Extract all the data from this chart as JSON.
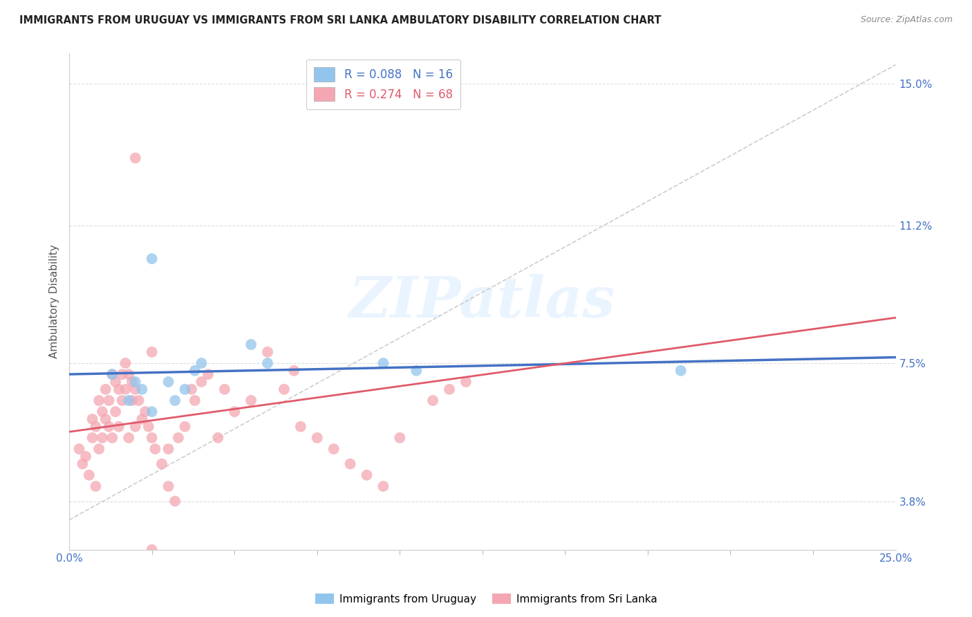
{
  "title": "IMMIGRANTS FROM URUGUAY VS IMMIGRANTS FROM SRI LANKA AMBULATORY DISABILITY CORRELATION CHART",
  "source": "Source: ZipAtlas.com",
  "ylabel_label": "Ambulatory Disability",
  "legend_label1": "Immigrants from Uruguay",
  "legend_label2": "Immigrants from Sri Lanka",
  "R_uruguay": 0.088,
  "N_uruguay": 16,
  "R_srilanka": 0.274,
  "N_srilanka": 68,
  "color_uruguay": "#92C5ED",
  "color_srilanka": "#F4A7B2",
  "line_color_uruguay": "#4472C4",
  "line_color_srilanka": "#E05A6A",
  "diag_line_color": "#C0C0C0",
  "background_color": "#FFFFFF",
  "xlim": [
    0.0,
    0.25
  ],
  "ylim": [
    0.025,
    0.158
  ],
  "ytick_vals": [
    0.038,
    0.075,
    0.112,
    0.15
  ],
  "ytick_labels": [
    "3.8%",
    "7.5%",
    "11.2%",
    "15.0%"
  ],
  "xtick_vals": [
    0.0,
    0.25
  ],
  "xtick_labels": [
    "0.0%",
    "25.0%"
  ],
  "watermark": "ZIPatlas",
  "uruguay_x": [
    0.013,
    0.018,
    0.02,
    0.022,
    0.025,
    0.025,
    0.03,
    0.032,
    0.035,
    0.038,
    0.04,
    0.055,
    0.06,
    0.095,
    0.105,
    0.185
  ],
  "uruguay_y": [
    0.072,
    0.065,
    0.07,
    0.068,
    0.062,
    0.103,
    0.07,
    0.065,
    0.068,
    0.073,
    0.075,
    0.08,
    0.075,
    0.075,
    0.073,
    0.073
  ],
  "srilanka_x": [
    0.003,
    0.004,
    0.005,
    0.006,
    0.007,
    0.007,
    0.008,
    0.008,
    0.009,
    0.009,
    0.01,
    0.01,
    0.011,
    0.011,
    0.012,
    0.012,
    0.013,
    0.013,
    0.014,
    0.014,
    0.015,
    0.015,
    0.016,
    0.016,
    0.017,
    0.017,
    0.018,
    0.018,
    0.019,
    0.019,
    0.02,
    0.02,
    0.021,
    0.022,
    0.023,
    0.024,
    0.025,
    0.025,
    0.026,
    0.028,
    0.03,
    0.03,
    0.032,
    0.033,
    0.035,
    0.037,
    0.038,
    0.04,
    0.042,
    0.045,
    0.047,
    0.05,
    0.055,
    0.06,
    0.065,
    0.068,
    0.07,
    0.075,
    0.08,
    0.085,
    0.09,
    0.095,
    0.1,
    0.11,
    0.115,
    0.12,
    0.025,
    0.02
  ],
  "srilanka_y": [
    0.052,
    0.048,
    0.05,
    0.045,
    0.055,
    0.06,
    0.042,
    0.058,
    0.052,
    0.065,
    0.055,
    0.062,
    0.06,
    0.068,
    0.058,
    0.065,
    0.055,
    0.072,
    0.062,
    0.07,
    0.058,
    0.068,
    0.065,
    0.072,
    0.068,
    0.075,
    0.055,
    0.072,
    0.065,
    0.07,
    0.058,
    0.068,
    0.065,
    0.06,
    0.062,
    0.058,
    0.055,
    0.078,
    0.052,
    0.048,
    0.042,
    0.052,
    0.038,
    0.055,
    0.058,
    0.068,
    0.065,
    0.07,
    0.072,
    0.055,
    0.068,
    0.062,
    0.065,
    0.078,
    0.068,
    0.073,
    0.058,
    0.055,
    0.052,
    0.048,
    0.045,
    0.042,
    0.055,
    0.065,
    0.068,
    0.07,
    0.025,
    0.13
  ]
}
